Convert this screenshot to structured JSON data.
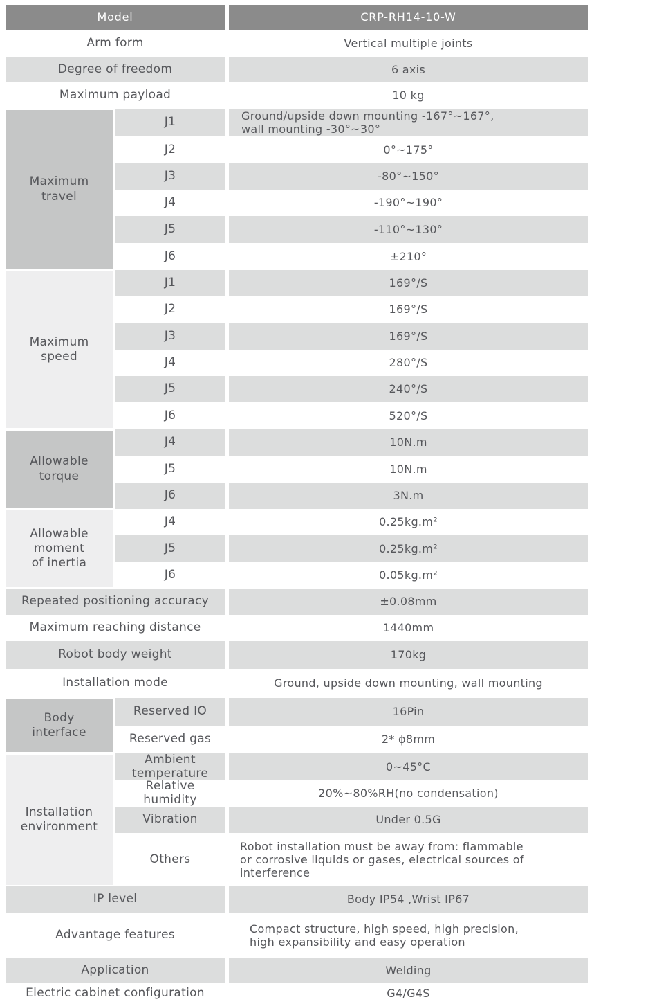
{
  "colors": {
    "header_bg": "#8b8b8b",
    "header_text": "#ffffff",
    "row_gray": "#dcdddd",
    "section_dark": "#c5c6c6",
    "section_light": "#eeeeef",
    "text": "#56575b"
  },
  "spec": {
    "model": {
      "label": "Model",
      "value": "CRP-RH14-10-W"
    },
    "arm_form": {
      "label": "Arm form",
      "value": "Vertical multiple joints"
    },
    "degree_of_freedom": {
      "label": "Degree of freedom",
      "value": "6 axis"
    },
    "maximum_payload": {
      "label": "Maximum payload",
      "value": "10 kg"
    },
    "maximum_travel": {
      "label": "Maximum\ntravel",
      "rows": [
        {
          "joint": "J1",
          "value": "Ground/upside down mounting -167°~167°,\nwall mounting -30°~30°"
        },
        {
          "joint": "J2",
          "value": "0°~175°"
        },
        {
          "joint": "J3",
          "value": "-80°~150°"
        },
        {
          "joint": "J4",
          "value": "-190°~190°"
        },
        {
          "joint": "J5",
          "value": "-110°~130°"
        },
        {
          "joint": "J6",
          "value": "±210°"
        }
      ]
    },
    "maximum_speed": {
      "label": "Maximum\nspeed",
      "rows": [
        {
          "joint": "J1",
          "value": "169°/S"
        },
        {
          "joint": "J2",
          "value": "169°/S"
        },
        {
          "joint": "J3",
          "value": "169°/S"
        },
        {
          "joint": "J4",
          "value": "280°/S"
        },
        {
          "joint": "J5",
          "value": "240°/S"
        },
        {
          "joint": "J6",
          "value": "520°/S"
        }
      ]
    },
    "allowable_torque": {
      "label": "Allowable\ntorque",
      "rows": [
        {
          "joint": "J4",
          "value": "10N.m"
        },
        {
          "joint": "J5",
          "value": "10N.m"
        },
        {
          "joint": "J6",
          "value": "3N.m"
        }
      ]
    },
    "allowable_moment_of_inertia": {
      "label": "Allowable\nmoment\nof inertia",
      "rows": [
        {
          "joint": "J4",
          "value": "0.25kg.m²"
        },
        {
          "joint": "J5",
          "value": "0.25kg.m²"
        },
        {
          "joint": "J6",
          "value": "0.05kg.m²"
        }
      ]
    },
    "repeated_positioning_accuracy": {
      "label": "Repeated positioning accuracy",
      "value": "±0.08mm"
    },
    "maximum_reaching_distance": {
      "label": "Maximum reaching distance",
      "value": "1440mm"
    },
    "robot_body_weight": {
      "label": "Robot body weight",
      "value": "170kg"
    },
    "installation_mode": {
      "label": "Installation mode",
      "value": "Ground, upside down mounting, wall mounting"
    },
    "body_interface": {
      "label": "Body\ninterface",
      "rows": [
        {
          "name": "Reserved IO",
          "value": "16Pin"
        },
        {
          "name": "Reserved gas",
          "value": "2* ϕ8mm"
        }
      ]
    },
    "installation_environment": {
      "label": "Installation\nenvironment",
      "rows": [
        {
          "name": "Ambient\ntemperature",
          "value": "0~45°C"
        },
        {
          "name": "Relative\nhumidity",
          "value": "20%~80%RH(no condensation)"
        },
        {
          "name": "Vibration",
          "value": "Under 0.5G"
        },
        {
          "name": "Others",
          "value": "Robot installation must be away from: flammable\nor corrosive liquids or gases, electrical sources of\ninterference"
        }
      ]
    },
    "ip_level": {
      "label": "IP level",
      "value": "Body IP54 ,Wrist IP67"
    },
    "advantage_features": {
      "label": "Advantage features",
      "value": "Compact structure, high speed, high precision,\nhigh expansibility and easy operation"
    },
    "application": {
      "label": "Application",
      "value": "Welding"
    },
    "electric_cabinet_configuration": {
      "label": "Electric cabinet configuration",
      "value": "G4/G4S"
    }
  }
}
